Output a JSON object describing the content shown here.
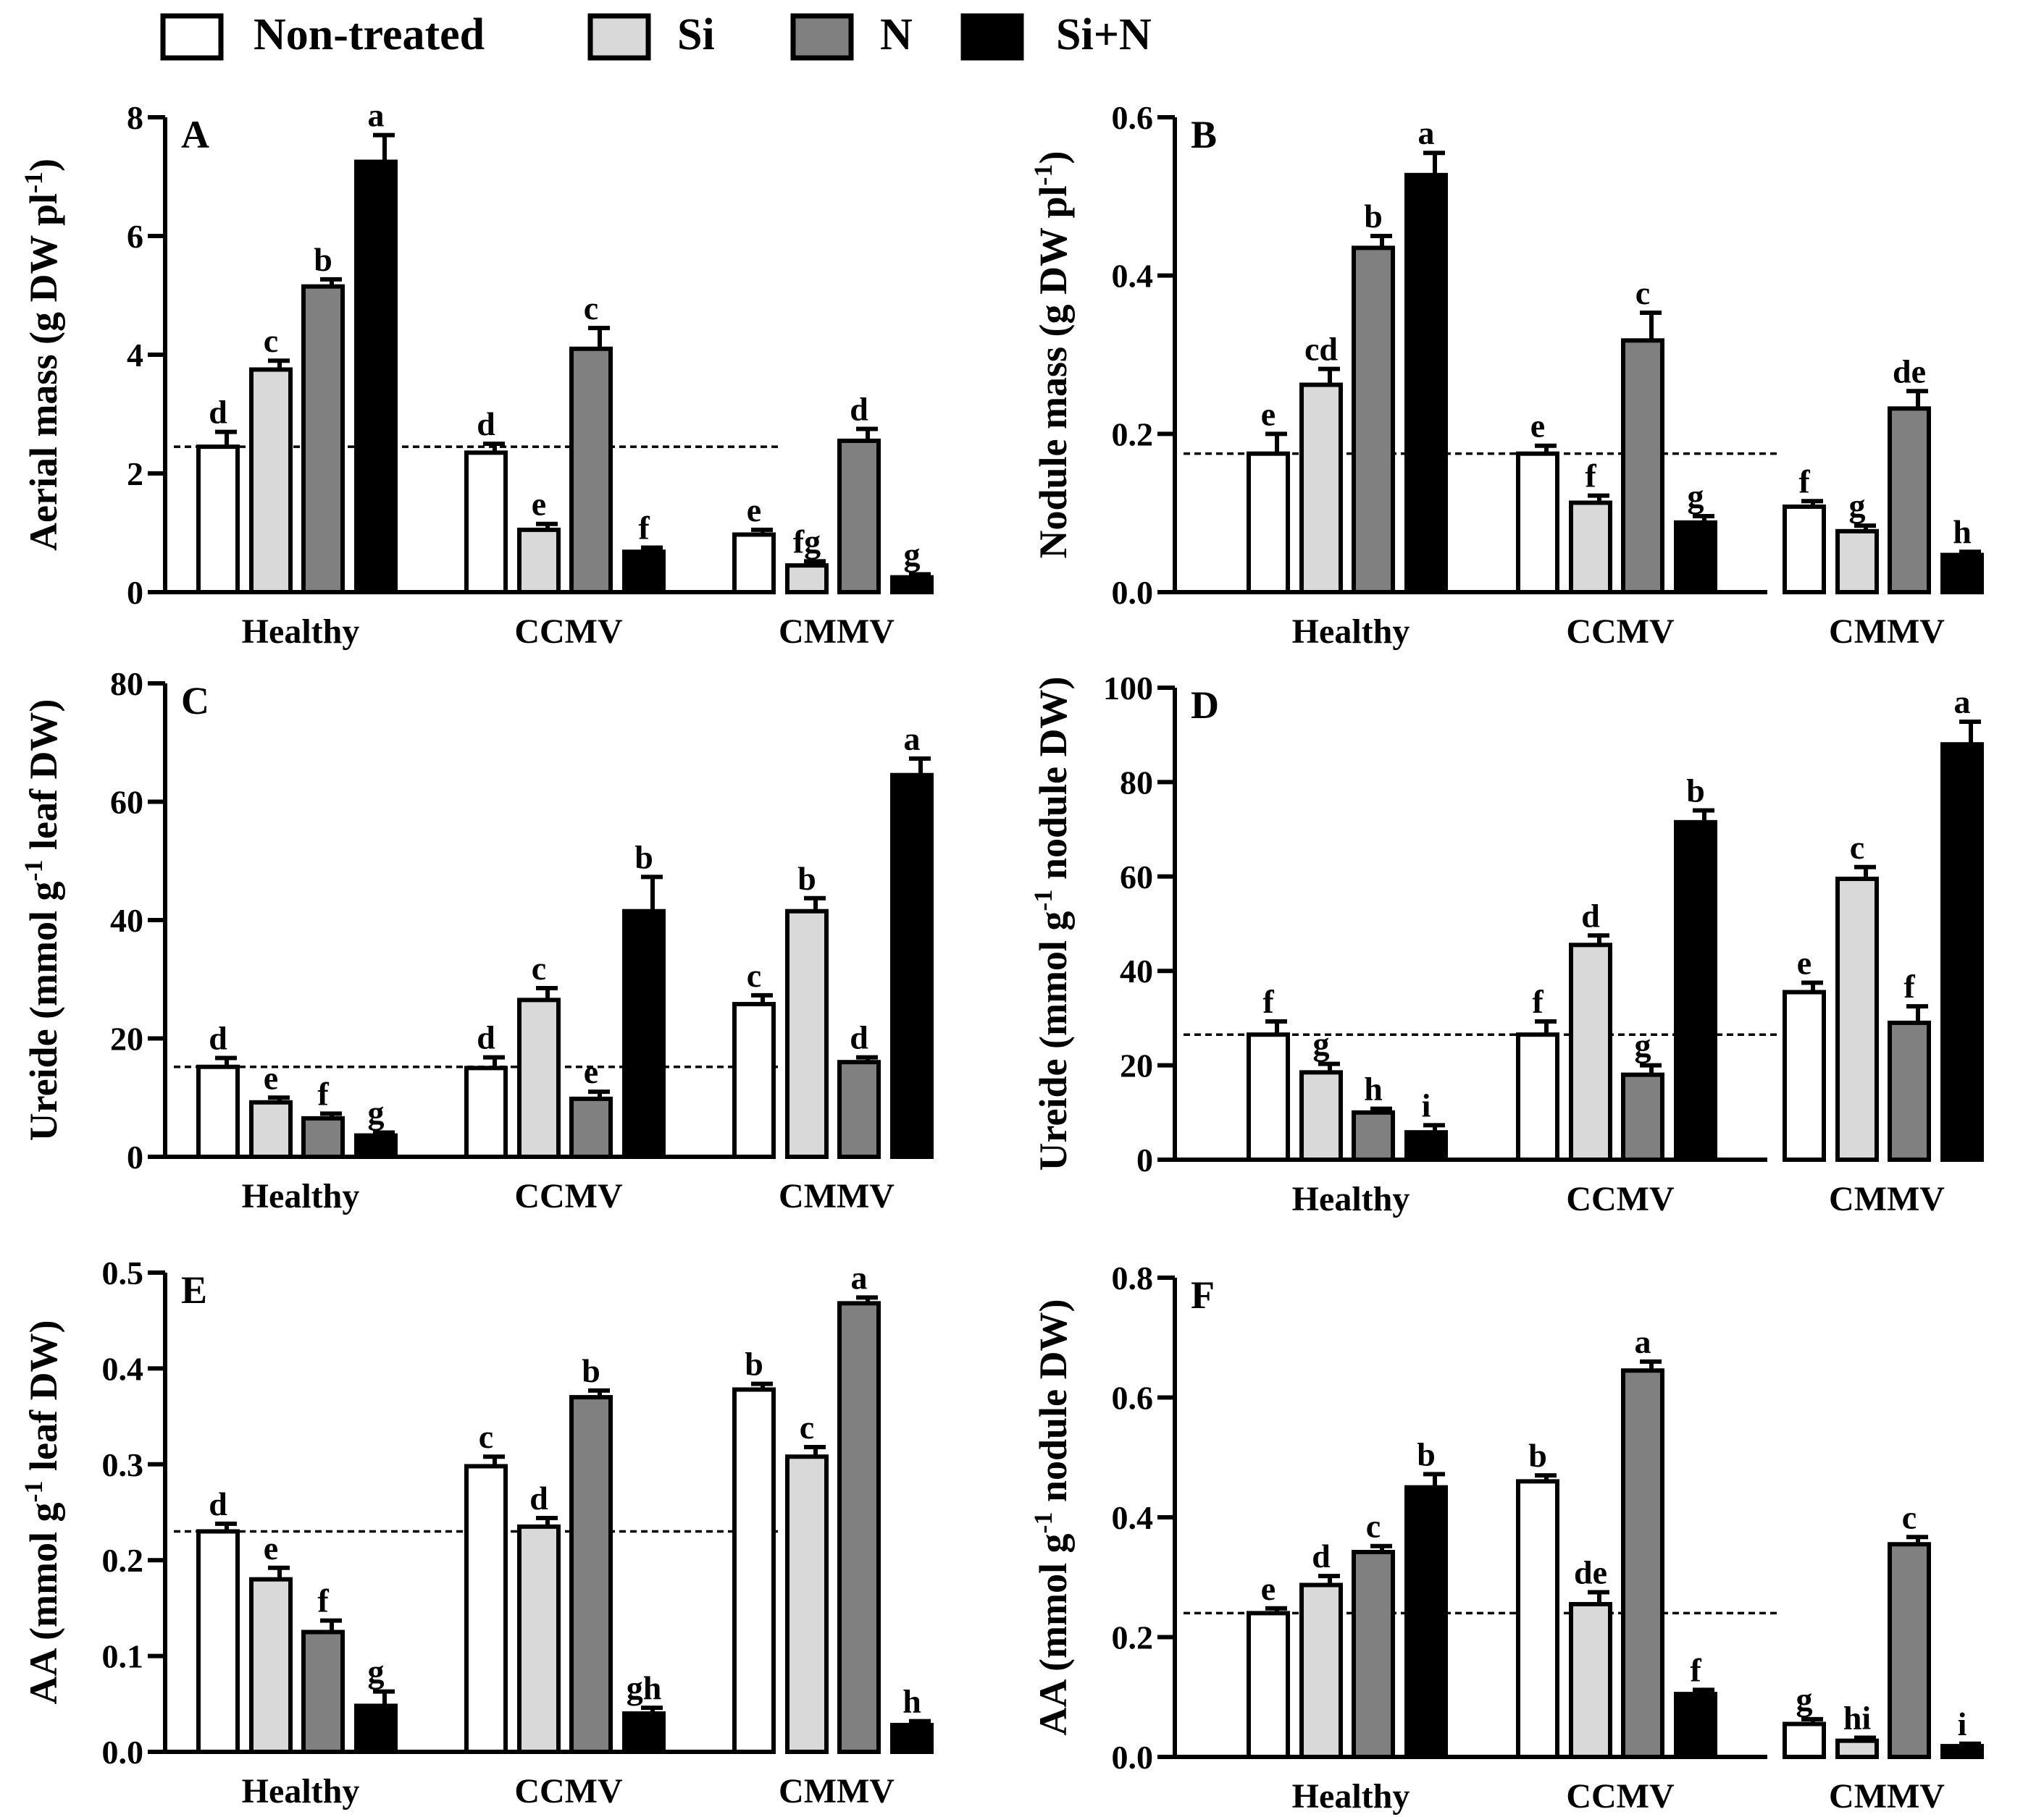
{
  "legend": {
    "items": [
      {
        "name": "Non-treated",
        "color": "#ffffff"
      },
      {
        "name": "Si",
        "color": "#d9d9d9"
      },
      {
        "name": "N",
        "color": "#808080"
      },
      {
        "name": "Si+N",
        "color": "#000000"
      }
    ]
  },
  "chart_data": [
    {
      "type": "bar",
      "panel": "A",
      "ylabel": "Aerial mass (g DW pl-1)",
      "ylabel_main": "Aerial mass (g DW pl",
      "ylabel_sup": "-1",
      "ylabel_end": ")",
      "categories": [
        "Healthy",
        "CCMV",
        "CMMV"
      ],
      "ylim": [
        0,
        8
      ],
      "yticks": [
        "0",
        "2",
        "4",
        "6",
        "8"
      ],
      "reference_line": 2.45,
      "series": [
        {
          "name": "Non-treated",
          "values": [
            2.45,
            2.35,
            0.97
          ],
          "errors": [
            0.25,
            0.15,
            0.08
          ],
          "letters": [
            "d",
            "d",
            "e"
          ]
        },
        {
          "name": "Si",
          "values": [
            3.75,
            1.05,
            0.45
          ],
          "errors": [
            0.15,
            0.1,
            0.07
          ],
          "letters": [
            "c",
            "e",
            "fg"
          ]
        },
        {
          "name": "N",
          "values": [
            5.15,
            4.1,
            2.55
          ],
          "errors": [
            0.12,
            0.35,
            0.2
          ],
          "letters": [
            "b",
            "c",
            "d"
          ]
        },
        {
          "name": "Si+N",
          "values": [
            7.25,
            0.68,
            0.25
          ],
          "errors": [
            0.45,
            0.07,
            0.05
          ],
          "letters": [
            "a",
            "f",
            "g"
          ]
        }
      ]
    },
    {
      "type": "bar",
      "panel": "B",
      "ylabel": "Nodule mass (g DW pl-1)",
      "ylabel_main": "Nodule mass (g DW pl",
      "ylabel_sup": "-1",
      "ylabel_end": ")",
      "categories": [
        "Healthy",
        "CCMV",
        "CMMV"
      ],
      "ylim": [
        0,
        0.6
      ],
      "yticks": [
        "0.0",
        "0.2",
        "0.4",
        "0.6"
      ],
      "reference_line": 0.175,
      "series": [
        {
          "name": "Non-treated",
          "values": [
            0.175,
            0.175,
            0.108
          ],
          "errors": [
            0.025,
            0.01,
            0.007
          ],
          "letters": [
            "e",
            "e",
            "f"
          ]
        },
        {
          "name": "Si",
          "values": [
            0.262,
            0.113,
            0.077
          ],
          "errors": [
            0.02,
            0.009,
            0.007
          ],
          "letters": [
            "cd",
            "f",
            "g"
          ]
        },
        {
          "name": "N",
          "values": [
            0.435,
            0.318,
            0.232
          ],
          "errors": [
            0.015,
            0.035,
            0.022
          ],
          "letters": [
            "b",
            "c",
            "de"
          ]
        },
        {
          "name": "Si+N",
          "values": [
            0.527,
            0.088,
            0.047
          ],
          "errors": [
            0.028,
            0.008,
            0.004
          ],
          "letters": [
            "a",
            "g",
            "h"
          ]
        }
      ]
    },
    {
      "type": "bar",
      "panel": "C",
      "ylabel": "Ureide (mmol g-1 leaf DW)",
      "ylabel_main": "Ureide (mmol g",
      "ylabel_sup": "-1",
      "ylabel_end": " leaf DW)",
      "categories": [
        "Healthy",
        "CCMV",
        "CMMV"
      ],
      "ylim": [
        0,
        80
      ],
      "yticks": [
        "0",
        "20",
        "40",
        "60",
        "80"
      ],
      "reference_line": 15.2,
      "series": [
        {
          "name": "Non-treated",
          "values": [
            15.2,
            15.0,
            25.8
          ],
          "errors": [
            1.5,
            1.8,
            1.5
          ],
          "letters": [
            "d",
            "d",
            "c"
          ]
        },
        {
          "name": "Si",
          "values": [
            9.2,
            26.5,
            41.5
          ],
          "errors": [
            0.8,
            2.0,
            2.2
          ],
          "letters": [
            "e",
            "c",
            "b"
          ]
        },
        {
          "name": "N",
          "values": [
            6.5,
            9.8,
            16.0
          ],
          "errors": [
            0.8,
            1.2,
            0.8
          ],
          "letters": [
            "f",
            "e",
            "d"
          ]
        },
        {
          "name": "Si+N",
          "values": [
            3.6,
            41.5,
            64.5
          ],
          "errors": [
            0.5,
            5.8,
            2.8
          ],
          "letters": [
            "g",
            "b",
            "a"
          ]
        }
      ]
    },
    {
      "type": "bar",
      "panel": "D",
      "ylabel": "Ureide (mmol g-1 nodule DW)",
      "ylabel_main": "Ureide (mmol g",
      "ylabel_sup": "-1",
      "ylabel_end": " nodule DW)",
      "categories": [
        "Healthy",
        "CCMV",
        "CMMV"
      ],
      "ylim": [
        0,
        100
      ],
      "yticks": [
        "0",
        "20",
        "40",
        "60",
        "80",
        "100"
      ],
      "reference_line": 26.5,
      "series": [
        {
          "name": "Non-treated",
          "values": [
            26.5,
            26.5,
            35.5
          ],
          "errors": [
            2.8,
            2.8,
            2.0
          ],
          "letters": [
            "f",
            "f",
            "e"
          ]
        },
        {
          "name": "Si",
          "values": [
            18.5,
            45.5,
            59.5
          ],
          "errors": [
            1.8,
            2.0,
            2.5
          ],
          "letters": [
            "g",
            "d",
            "c"
          ]
        },
        {
          "name": "N",
          "values": [
            10.0,
            18.0,
            29.0
          ],
          "errors": [
            0.8,
            2.0,
            3.5
          ],
          "letters": [
            "h",
            "g",
            "f"
          ]
        },
        {
          "name": "Si+N",
          "values": [
            5.8,
            71.5,
            88.0
          ],
          "errors": [
            1.5,
            2.5,
            4.8
          ],
          "letters": [
            "i",
            "b",
            "a"
          ]
        }
      ]
    },
    {
      "type": "bar",
      "panel": "E",
      "ylabel": "AA (mmol g-1 leaf DW)",
      "ylabel_main": "AA (mmol g",
      "ylabel_sup": "-1",
      "ylabel_end": " leaf DW)",
      "categories": [
        "Healthy",
        "CCMV",
        "CMMV"
      ],
      "ylim": [
        0,
        0.5
      ],
      "yticks": [
        "0.0",
        "0.1",
        "0.2",
        "0.3",
        "0.4",
        "0.5"
      ],
      "reference_line": 0.23,
      "series": [
        {
          "name": "Non-treated",
          "values": [
            0.23,
            0.298,
            0.378
          ],
          "errors": [
            0.008,
            0.01,
            0.006
          ],
          "letters": [
            "d",
            "c",
            "b"
          ]
        },
        {
          "name": "Si",
          "values": [
            0.18,
            0.235,
            0.308
          ],
          "errors": [
            0.012,
            0.009,
            0.01
          ],
          "letters": [
            "e",
            "d",
            "c"
          ]
        },
        {
          "name": "N",
          "values": [
            0.125,
            0.37,
            0.468
          ],
          "errors": [
            0.012,
            0.007,
            0.006
          ],
          "letters": [
            "f",
            "b",
            "a"
          ]
        },
        {
          "name": "Si+N",
          "values": [
            0.048,
            0.04,
            0.028
          ],
          "errors": [
            0.015,
            0.006,
            0.004
          ],
          "letters": [
            "g",
            "gh",
            "h"
          ]
        }
      ]
    },
    {
      "type": "bar",
      "panel": "F",
      "ylabel": "AA (mmol g-1 nodule DW)",
      "ylabel_main": "AA (mmol g",
      "ylabel_sup": "-1",
      "ylabel_end": " nodule DW)",
      "categories": [
        "Healthy",
        "CCMV",
        "CMMV"
      ],
      "ylim": [
        0,
        0.8
      ],
      "yticks": [
        "0.0",
        "0.2",
        "0.4",
        "0.6",
        "0.8"
      ],
      "reference_line": 0.24,
      "series": [
        {
          "name": "Non-treated",
          "values": [
            0.24,
            0.46,
            0.055
          ],
          "errors": [
            0.008,
            0.01,
            0.008
          ],
          "letters": [
            "e",
            "b",
            "g"
          ]
        },
        {
          "name": "Si",
          "values": [
            0.287,
            0.255,
            0.027
          ],
          "errors": [
            0.015,
            0.02,
            0.005
          ],
          "letters": [
            "d",
            "de",
            "hi"
          ]
        },
        {
          "name": "N",
          "values": [
            0.342,
            0.645,
            0.355
          ],
          "errors": [
            0.01,
            0.015,
            0.012
          ],
          "letters": [
            "c",
            "a",
            "c"
          ]
        },
        {
          "name": "Si+N",
          "values": [
            0.45,
            0.105,
            0.018
          ],
          "errors": [
            0.022,
            0.007,
            0.004
          ],
          "letters": [
            "b",
            "f",
            "i"
          ]
        }
      ]
    }
  ]
}
